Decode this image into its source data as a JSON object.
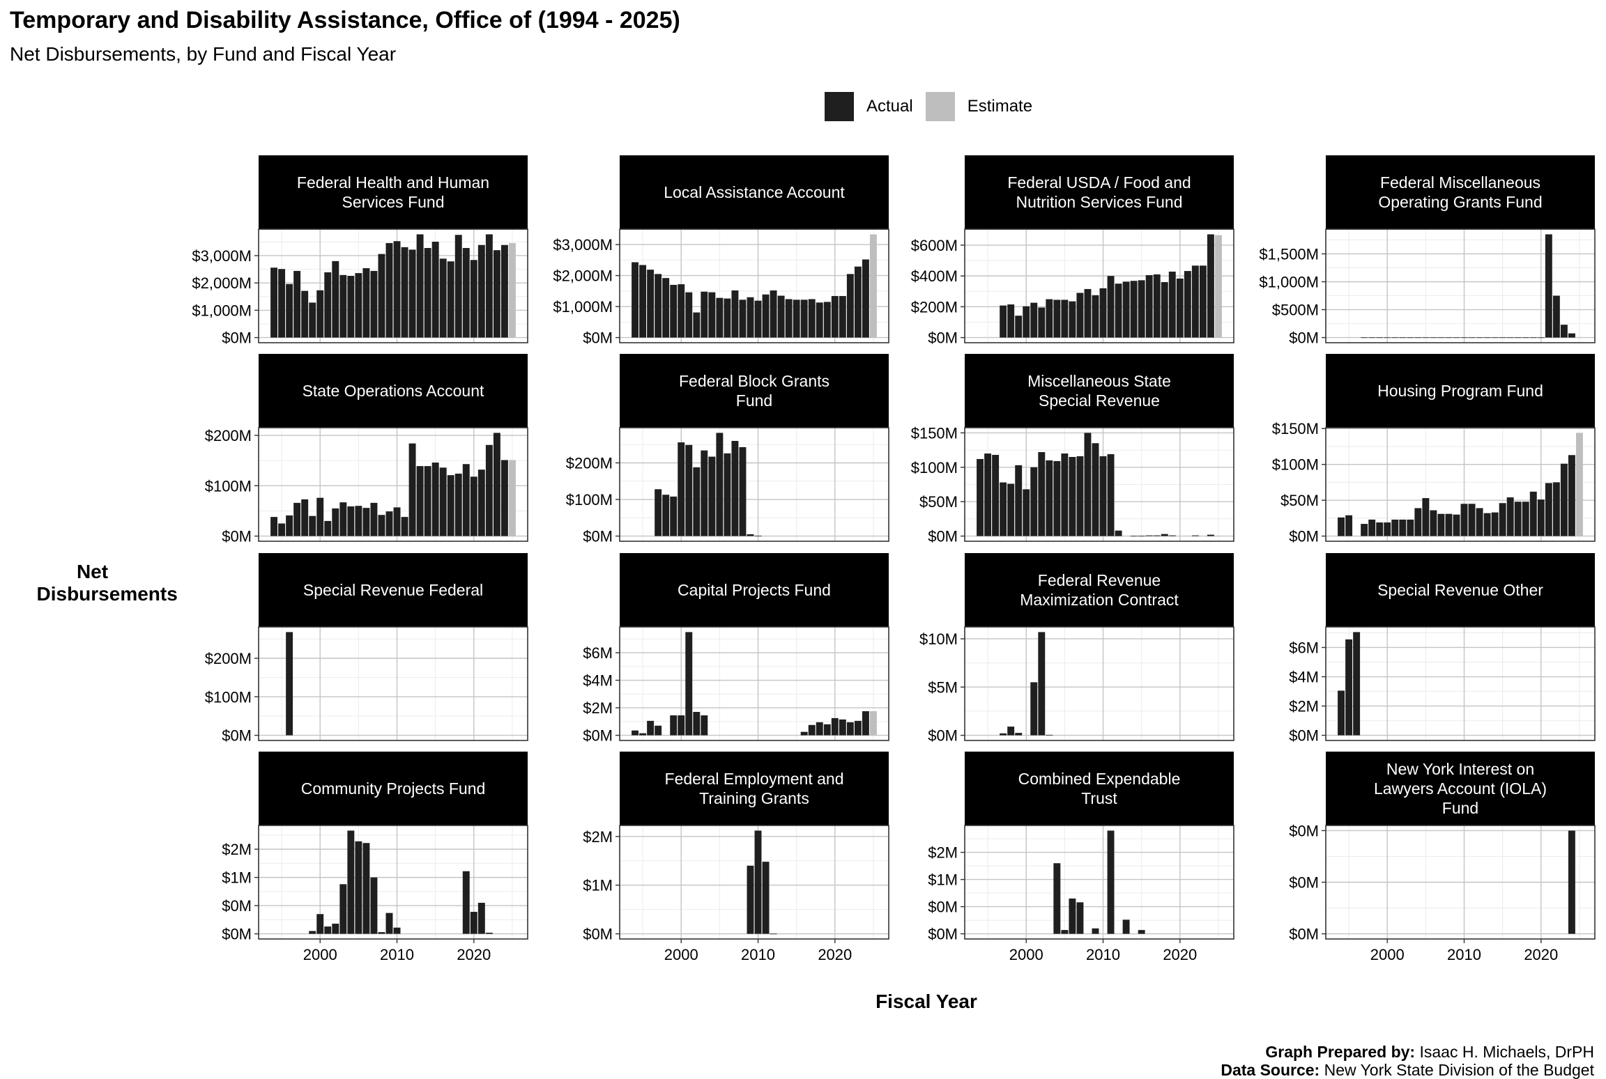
{
  "title": "Temporary and Disability Assistance, Office of (1994 - 2025)",
  "subtitle": "Net Disbursements, by Fund and Fiscal Year",
  "legend": {
    "items": [
      {
        "label": "Actual",
        "color": "#1f1f1f"
      },
      {
        "label": "Estimate",
        "color": "#bebebe"
      }
    ],
    "placement": "top"
  },
  "y_axis_label": "Net Disbursements",
  "x_axis_label": "Fiscal Year",
  "caption": {
    "prepared_label": "Graph Prepared by:",
    "prepared_value": " Isaac H. Michaels, DrPH",
    "source_label": "Data Source:",
    "source_value": " New York State Division of the Budget"
  },
  "chart_data": {
    "type": "bar",
    "layout": "facet-grid 4x4",
    "x_ticks": [
      2000,
      2010,
      2020
    ],
    "x_tick_labels": [
      "2000",
      "2010",
      "2020"
    ],
    "xlim": [
      1994,
      2025
    ],
    "unit": "$M",
    "grid": true,
    "panels": [
      {
        "title": [
          "Federal Health and Human",
          "Services Fund"
        ],
        "y_ticks": [
          0,
          1000,
          2000,
          3000
        ],
        "y_tick_labels": [
          "$0M",
          "$1,000M",
          "$2,000M",
          "$3,000M"
        ],
        "start_year": 1994,
        "actual": [
          2560,
          2510,
          1960,
          2440,
          1710,
          1280,
          1730,
          2390,
          2800,
          2290,
          2260,
          2360,
          2540,
          2440,
          3060,
          3460,
          3530,
          3310,
          3220,
          3780,
          3280,
          3510,
          2890,
          2790,
          3760,
          3280,
          2840,
          3390,
          3780,
          3200,
          3390
        ],
        "estimate": {
          "year": 2025,
          "value": 3460
        }
      },
      {
        "title": [
          "Local Assistance Account"
        ],
        "y_ticks": [
          0,
          1000,
          2000,
          3000
        ],
        "y_tick_labels": [
          "$0M",
          "$1,000M",
          "$2,000M",
          "$3,000M"
        ],
        "start_year": 1994,
        "actual": [
          2430,
          2340,
          2190,
          2050,
          1920,
          1700,
          1720,
          1460,
          810,
          1480,
          1460,
          1280,
          1260,
          1520,
          1220,
          1300,
          1190,
          1390,
          1520,
          1350,
          1240,
          1220,
          1220,
          1240,
          1130,
          1150,
          1340,
          1340,
          2050,
          2290,
          2520
        ],
        "estimate": {
          "year": 2025,
          "value": 3330
        }
      },
      {
        "title": [
          "Federal USDA / Food and",
          "Nutrition Services Fund"
        ],
        "y_ticks": [
          0,
          200,
          400,
          600
        ],
        "y_tick_labels": [
          "$0M",
          "$200M",
          "$400M",
          "$600M"
        ],
        "start_year": 1997,
        "actual": [
          208,
          215,
          142,
          203,
          226,
          195,
          249,
          245,
          245,
          235,
          290,
          315,
          275,
          320,
          400,
          350,
          363,
          368,
          372,
          405,
          410,
          360,
          428,
          383,
          432,
          467,
          467,
          670
        ],
        "estimate": {
          "year": 2025,
          "value": 665
        }
      },
      {
        "title": [
          "Federal Miscellaneous",
          "Operating Grants Fund"
        ],
        "y_ticks": [
          0,
          500,
          1000,
          1500
        ],
        "y_tick_labels": [
          "$0M",
          "$500M",
          "$1,000M",
          "$1,500M"
        ],
        "start_year": 1997,
        "actual": [
          3,
          3,
          3,
          3,
          3,
          3,
          3,
          3,
          3,
          3,
          3,
          3,
          3,
          3,
          3,
          3,
          3,
          3,
          3,
          3,
          3,
          3,
          3,
          3,
          1850,
          750,
          230,
          75
        ],
        "estimate": null
      },
      {
        "title": [
          "State Operations Account"
        ],
        "y_ticks": [
          0,
          100,
          200
        ],
        "y_tick_labels": [
          "$0M",
          "$100M",
          "$200M"
        ],
        "start_year": 1994,
        "actual": [
          38,
          25,
          41,
          66,
          73,
          40,
          76,
          30,
          55,
          67,
          59,
          60,
          56,
          66,
          42,
          49,
          57,
          38,
          184,
          139,
          139,
          146,
          136,
          121,
          124,
          143,
          118,
          132,
          181,
          205,
          151
        ],
        "estimate": {
          "year": 2025,
          "value": 151
        }
      },
      {
        "title": [
          "Federal Block Grants",
          "Fund"
        ],
        "y_ticks": [
          0,
          100,
          200
        ],
        "y_tick_labels": [
          "$0M",
          "$100M",
          "$200M"
        ],
        "start_year": 1997,
        "actual": [
          128,
          113,
          108,
          256,
          249,
          188,
          234,
          217,
          282,
          226,
          260,
          243,
          5,
          1
        ],
        "estimate": null
      },
      {
        "title": [
          "Miscellaneous State",
          "Special Revenue"
        ],
        "y_ticks": [
          0,
          50,
          100,
          150
        ],
        "y_tick_labels": [
          "$0M",
          "$50M",
          "$100M",
          "$150M"
        ],
        "start_year": 1994,
        "actual": [
          112,
          120,
          118,
          78,
          76,
          103,
          68,
          100,
          122,
          110,
          109,
          120,
          115,
          116,
          150,
          135,
          116,
          119,
          8,
          null,
          0.3,
          0.3,
          1,
          1,
          3,
          1,
          null,
          null,
          1,
          null,
          2
        ],
        "estimate": {
          "year": 2025,
          "value": 0.5
        }
      },
      {
        "title": [
          "Housing Program Fund"
        ],
        "y_ticks": [
          0,
          50,
          100,
          150
        ],
        "y_tick_labels": [
          "$0M",
          "$50M",
          "$100M",
          "$150M"
        ],
        "start_year": 1994,
        "actual": [
          26,
          29,
          null,
          17,
          23,
          19,
          19,
          23,
          23,
          23,
          39,
          53,
          36,
          31,
          31,
          30,
          45,
          45,
          39,
          32,
          33,
          46,
          54,
          48,
          48,
          62,
          51,
          74,
          75,
          101,
          113
        ],
        "estimate": {
          "year": 2025,
          "value": 144
        }
      },
      {
        "title": [
          "Special Revenue Federal"
        ],
        "y_ticks": [
          0,
          100,
          200
        ],
        "y_tick_labels": [
          "$0M",
          "$100M",
          "$200M"
        ],
        "start_year": 1996,
        "actual": [
          268
        ],
        "estimate": null
      },
      {
        "title": [
          "Capital Projects Fund"
        ],
        "y_ticks": [
          0,
          2,
          4,
          6
        ],
        "y_tick_labels": [
          "$0M",
          "$2M",
          "$4M",
          "$6M"
        ],
        "start_year": 1994,
        "actual": [
          0.35,
          0.15,
          1.05,
          0.7,
          null,
          1.45,
          1.45,
          7.5,
          1.7,
          1.45,
          null,
          null,
          null,
          null,
          null,
          null,
          null,
          null,
          null,
          null,
          null,
          null,
          0.25,
          0.75,
          0.95,
          0.8,
          1.25,
          1.15,
          0.95,
          1.05,
          1.75
        ],
        "estimate": {
          "year": 2025,
          "value": 1.75
        }
      },
      {
        "title": [
          "Federal Revenue",
          "Maximization Contract"
        ],
        "y_ticks": [
          0,
          5,
          10
        ],
        "y_tick_labels": [
          "$0M",
          "$5M",
          "$10M"
        ],
        "start_year": 1997,
        "actual": [
          0.2,
          0.9,
          0.25,
          null,
          5.5,
          10.7,
          0.05
        ],
        "estimate": null
      },
      {
        "title": [
          "Special Revenue Other"
        ],
        "y_ticks": [
          0,
          2,
          4,
          6
        ],
        "y_tick_labels": [
          "$0M",
          "$2M",
          "$4M",
          "$6M"
        ],
        "start_year": 1994,
        "actual": [
          3.05,
          6.55,
          7.05
        ],
        "estimate": null
      },
      {
        "title": [
          "Community Projects Fund"
        ],
        "y_ticks": [
          0,
          0.5,
          1,
          1.5
        ],
        "y_tick_labels": [
          "$0M",
          "$0M",
          "$1M",
          "$2M"
        ],
        "start_year": 1999,
        "actual": [
          0.05,
          0.35,
          0.13,
          0.18,
          0.88,
          1.83,
          1.64,
          1.61,
          1.0,
          0.03,
          0.37,
          0.11,
          null,
          null,
          null,
          null,
          null,
          null,
          null,
          null,
          1.11,
          0.39,
          0.55,
          0.02
        ],
        "estimate": null
      },
      {
        "title": [
          "Federal Employment and",
          "Training Grants"
        ],
        "y_ticks": [
          0,
          1,
          2
        ],
        "y_tick_labels": [
          "$0M",
          "$1M",
          "$2M"
        ],
        "start_year": 2009,
        "actual": [
          1.4,
          2.12,
          1.48,
          0.003
        ],
        "estimate": null
      },
      {
        "title": [
          "Combined Expendable",
          "Trust"
        ],
        "y_ticks": [
          0,
          0.5,
          1,
          1.5
        ],
        "y_tick_labels": [
          "$0M",
          "$0M",
          "$1M",
          "$2M"
        ],
        "start_year": 2004,
        "actual": [
          1.3,
          0.07,
          0.65,
          0.58,
          null,
          0.1,
          null,
          1.9,
          null,
          0.26,
          null,
          0.07
        ],
        "estimate": null
      },
      {
        "title": [
          "New York Interest on",
          "Lawyers Account (IOLA)",
          "Fund"
        ],
        "y_ticks": [
          0,
          0.02,
          0.04
        ],
        "y_tick_labels": [
          "$0M",
          "$0M",
          "$0M"
        ],
        "start_year": 2024,
        "actual": [
          0.04
        ],
        "estimate": null
      }
    ]
  }
}
